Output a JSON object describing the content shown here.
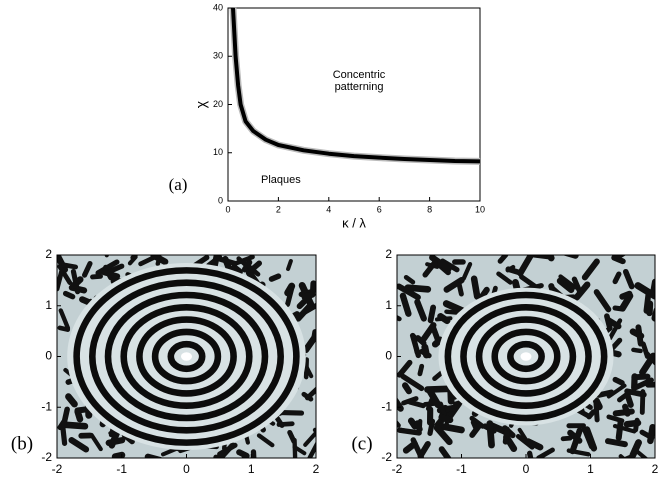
{
  "chart_data": [
    {
      "type": "line",
      "panel_label": "(a)",
      "x_label": "κ / λ",
      "y_label": "χ",
      "x": [
        0.2,
        0.3,
        0.4,
        0.5,
        0.7,
        1,
        1.5,
        2,
        3,
        4,
        5,
        6,
        7,
        8,
        9,
        10
      ],
      "values": [
        40,
        30,
        24,
        20,
        16.5,
        14.5,
        12.7,
        11.6,
        10.5,
        9.8,
        9.3,
        9,
        8.7,
        8.5,
        8.3,
        8.2
      ],
      "color": "#000000",
      "xlim": [
        0,
        10
      ],
      "xticks": [
        0,
        2,
        4,
        6,
        8,
        10
      ],
      "ylim": [
        0,
        40
      ],
      "yticks": [
        0,
        10,
        20,
        30,
        40
      ],
      "annotations": [
        "Concentric patterning",
        "Plaques"
      ]
    },
    {
      "type": "image",
      "panel_label": "(b)",
      "xlim": [
        -2,
        2
      ],
      "xticks": [
        -2,
        -1,
        0,
        1,
        2
      ],
      "ylim": [
        -2,
        2
      ],
      "yticks": [
        -2,
        -1,
        0,
        1,
        2
      ]
    },
    {
      "type": "image",
      "panel_label": "(c)",
      "xlim": [
        -2,
        2
      ],
      "xticks": [
        -2,
        -1,
        0,
        1,
        2
      ],
      "ylim": [
        -2,
        2
      ],
      "yticks": [
        -2,
        -1,
        0,
        1,
        2
      ]
    }
  ]
}
